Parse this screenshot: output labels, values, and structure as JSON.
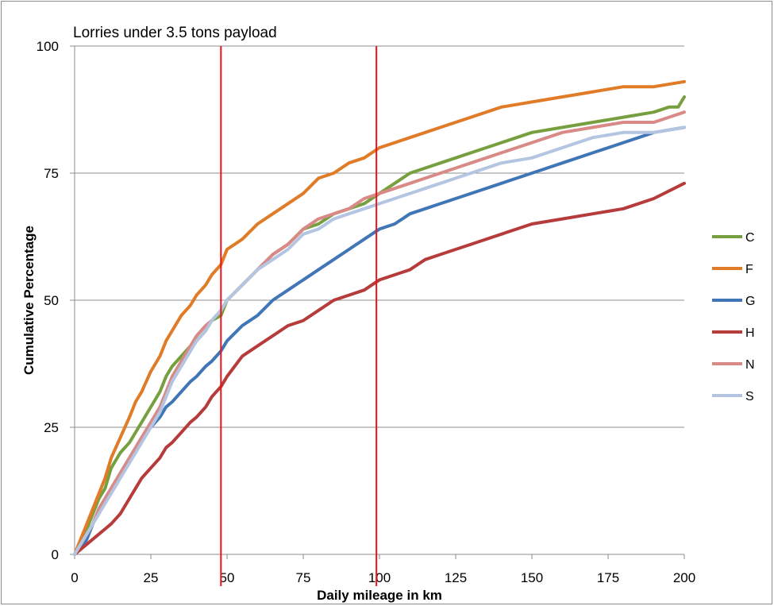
{
  "chart_data": {
    "type": "line",
    "title": "Lorries under 3.5 tons payload",
    "xlabel": "Daily mileage in km",
    "ylabel": "Cumulative Percentage",
    "xlim": [
      0,
      200
    ],
    "ylim": [
      0,
      100
    ],
    "xticks": [
      "0",
      "25",
      "50",
      "75",
      "100",
      "125",
      "150",
      "175",
      "200"
    ],
    "yticks": [
      "0",
      "25",
      "50",
      "75",
      "100"
    ],
    "grid": "horizontal",
    "legend_position": "right",
    "reference_lines_x": [
      48,
      99
    ],
    "reference_line_color": "#e8141c",
    "series": [
      {
        "name": "C",
        "color": "#76a03f",
        "x": [
          0,
          2,
          4,
          6,
          8,
          10,
          12,
          15,
          18,
          20,
          22,
          25,
          28,
          30,
          32,
          35,
          38,
          40,
          43,
          45,
          48,
          50,
          55,
          60,
          65,
          70,
          75,
          80,
          85,
          90,
          95,
          100,
          105,
          110,
          115,
          120,
          125,
          130,
          140,
          150,
          160,
          170,
          180,
          190,
          195,
          198,
          200
        ],
        "y": [
          0,
          2,
          5,
          8,
          11,
          13,
          17,
          20,
          22,
          24,
          26,
          29,
          32,
          35,
          37,
          39,
          41,
          42,
          44,
          46,
          47,
          50,
          53,
          56,
          59,
          61,
          64,
          65,
          67,
          68,
          69,
          71,
          73,
          75,
          76,
          77,
          78,
          79,
          81,
          83,
          84,
          85,
          86,
          87,
          88,
          88,
          90
        ]
      },
      {
        "name": "F",
        "color": "#e07b27",
        "x": [
          0,
          2,
          4,
          6,
          8,
          10,
          12,
          15,
          18,
          20,
          22,
          25,
          28,
          30,
          32,
          35,
          38,
          40,
          43,
          45,
          48,
          50,
          55,
          60,
          65,
          70,
          75,
          80,
          85,
          90,
          95,
          100,
          105,
          110,
          115,
          120,
          125,
          130,
          140,
          150,
          160,
          170,
          180,
          190,
          200
        ],
        "y": [
          0,
          3,
          6,
          9,
          12,
          15,
          19,
          23,
          27,
          30,
          32,
          36,
          39,
          42,
          44,
          47,
          49,
          51,
          53,
          55,
          57,
          60,
          62,
          65,
          67,
          69,
          71,
          74,
          75,
          77,
          78,
          80,
          81,
          82,
          83,
          84,
          85,
          86,
          88,
          89,
          90,
          91,
          92,
          92,
          93
        ]
      },
      {
        "name": "G",
        "color": "#4176b6",
        "x": [
          0,
          2,
          4,
          6,
          8,
          10,
          12,
          15,
          18,
          20,
          22,
          25,
          28,
          30,
          32,
          35,
          38,
          40,
          43,
          45,
          48,
          50,
          55,
          60,
          65,
          70,
          75,
          80,
          85,
          90,
          95,
          100,
          105,
          110,
          115,
          120,
          125,
          130,
          140,
          150,
          160,
          170,
          180,
          190,
          200
        ],
        "y": [
          0,
          1,
          3,
          6,
          9,
          11,
          13,
          16,
          19,
          21,
          23,
          25,
          27,
          29,
          30,
          32,
          34,
          35,
          37,
          38,
          40,
          42,
          45,
          47,
          50,
          52,
          54,
          56,
          58,
          60,
          62,
          64,
          65,
          67,
          68,
          69,
          70,
          71,
          73,
          75,
          77,
          79,
          81,
          83,
          84
        ]
      },
      {
        "name": "H",
        "color": "#b63c3b",
        "x": [
          0,
          2,
          4,
          6,
          8,
          10,
          12,
          15,
          18,
          20,
          22,
          25,
          28,
          30,
          32,
          35,
          38,
          40,
          43,
          45,
          48,
          50,
          55,
          60,
          65,
          70,
          75,
          80,
          85,
          90,
          95,
          100,
          105,
          110,
          115,
          120,
          125,
          130,
          140,
          150,
          160,
          170,
          180,
          190,
          200
        ],
        "y": [
          0,
          1,
          2,
          3,
          4,
          5,
          6,
          8,
          11,
          13,
          15,
          17,
          19,
          21,
          22,
          24,
          26,
          27,
          29,
          31,
          33,
          35,
          39,
          41,
          43,
          45,
          46,
          48,
          50,
          51,
          52,
          54,
          55,
          56,
          58,
          59,
          60,
          61,
          63,
          65,
          66,
          67,
          68,
          70,
          73
        ]
      },
      {
        "name": "N",
        "color": "#d98a87",
        "x": [
          0,
          2,
          4,
          6,
          8,
          10,
          12,
          15,
          18,
          20,
          22,
          25,
          28,
          30,
          32,
          35,
          38,
          40,
          43,
          45,
          48,
          50,
          55,
          60,
          65,
          70,
          75,
          80,
          85,
          90,
          95,
          100,
          105,
          110,
          115,
          120,
          125,
          130,
          140,
          150,
          160,
          170,
          180,
          190,
          195,
          200
        ],
        "y": [
          0,
          2,
          4,
          6,
          9,
          11,
          13,
          16,
          19,
          21,
          23,
          26,
          29,
          32,
          35,
          38,
          41,
          43,
          45,
          46,
          48,
          50,
          53,
          56,
          59,
          61,
          64,
          66,
          67,
          68,
          70,
          71,
          72,
          73,
          74,
          75,
          76,
          77,
          79,
          81,
          83,
          84,
          85,
          85,
          86,
          87
        ]
      },
      {
        "name": "S",
        "color": "#b3c5e1",
        "x": [
          0,
          2,
          4,
          6,
          8,
          10,
          12,
          15,
          18,
          20,
          22,
          25,
          28,
          30,
          32,
          35,
          38,
          40,
          43,
          45,
          48,
          50,
          55,
          60,
          65,
          70,
          75,
          80,
          85,
          90,
          95,
          100,
          105,
          110,
          115,
          120,
          125,
          130,
          140,
          150,
          160,
          170,
          180,
          190,
          200
        ],
        "y": [
          0,
          2,
          4,
          6,
          8,
          10,
          12,
          15,
          18,
          20,
          22,
          25,
          28,
          31,
          34,
          37,
          40,
          42,
          44,
          46,
          48,
          50,
          53,
          56,
          58,
          60,
          63,
          64,
          66,
          67,
          68,
          69,
          70,
          71,
          72,
          73,
          74,
          75,
          77,
          78,
          80,
          82,
          83,
          83,
          84
        ]
      }
    ]
  }
}
